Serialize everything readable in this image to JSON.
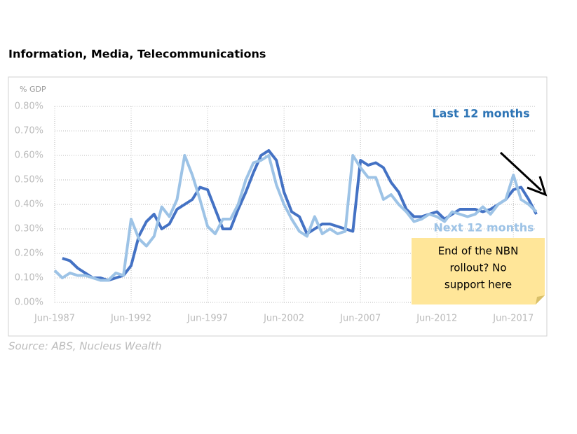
{
  "chart_data": {
    "type": "line",
    "title": "Information, Media, Telecommunications",
    "y_axis_label": "% GDP",
    "source": "Source: ABS, Nucleus Wealth",
    "annotation": [
      "End of the NBN",
      "rollout? No",
      "support here"
    ],
    "categories": [
      "Jun-1987",
      null,
      null,
      null,
      null,
      null,
      null,
      null,
      null,
      null,
      "Jun-1992",
      null,
      null,
      null,
      null,
      null,
      null,
      null,
      null,
      null,
      "Jun-1997",
      null,
      null,
      null,
      null,
      null,
      null,
      null,
      null,
      null,
      "Jun-2002",
      null,
      null,
      null,
      null,
      null,
      null,
      null,
      null,
      null,
      "Jun-2007",
      null,
      null,
      null,
      null,
      null,
      null,
      null,
      null,
      null,
      "Jun-2012",
      null,
      null,
      null,
      null,
      null,
      null,
      null,
      null,
      null,
      "Jun-2017",
      null,
      null,
      null
    ],
    "series": [
      {
        "name": "Last 12 months",
        "color": "#4472c4",
        "values": [
          null,
          0.18,
          0.17,
          0.14,
          0.12,
          0.1,
          0.1,
          0.09,
          0.1,
          0.11,
          0.15,
          0.27,
          0.33,
          0.36,
          0.3,
          0.32,
          0.38,
          0.4,
          0.42,
          0.47,
          0.46,
          0.38,
          0.3,
          0.3,
          0.38,
          0.45,
          0.53,
          0.6,
          0.62,
          0.58,
          0.45,
          0.37,
          0.35,
          0.28,
          0.3,
          0.32,
          0.32,
          0.31,
          0.3,
          0.29,
          0.58,
          0.56,
          0.57,
          0.55,
          0.49,
          0.45,
          0.38,
          0.35,
          0.35,
          0.36,
          0.37,
          0.34,
          0.36,
          0.38,
          0.38,
          0.38,
          0.37,
          0.38,
          0.4,
          0.42,
          0.46,
          0.47,
          0.42,
          0.36
        ]
      },
      {
        "name": "Next 12 months",
        "color": "#9dc3e6",
        "values": [
          0.13,
          0.1,
          0.12,
          0.11,
          0.11,
          0.1,
          0.09,
          0.09,
          0.12,
          0.11,
          0.34,
          0.26,
          0.23,
          0.27,
          0.39,
          0.35,
          0.42,
          0.6,
          0.52,
          0.42,
          0.31,
          0.28,
          0.34,
          0.34,
          0.4,
          0.5,
          0.57,
          0.58,
          0.6,
          0.48,
          0.4,
          0.34,
          0.29,
          0.27,
          0.35,
          0.28,
          0.3,
          0.28,
          0.29,
          0.6,
          0.55,
          0.51,
          0.51,
          0.42,
          0.44,
          0.4,
          0.37,
          0.33,
          0.34,
          0.36,
          0.35,
          0.33,
          0.37,
          0.36,
          0.35,
          0.36,
          0.39,
          0.36,
          0.4,
          0.42,
          0.52,
          0.42,
          0.4,
          0.37
        ]
      }
    ],
    "ylim": [
      0,
      0.8
    ],
    "yticks": [
      {
        "value": 0,
        "label": "0.00%"
      },
      {
        "value": 0.1,
        "label": "0.10%"
      },
      {
        "value": 0.2,
        "label": "0.20%"
      },
      {
        "value": 0.3,
        "label": "0.30%"
      },
      {
        "value": 0.4,
        "label": "0.40%"
      },
      {
        "value": 0.5,
        "label": "0.50%"
      },
      {
        "value": 0.6,
        "label": "0.60%"
      },
      {
        "value": 0.7,
        "label": "0.70%"
      },
      {
        "value": 0.8,
        "label": "0.80%"
      }
    ],
    "grid": true
  }
}
